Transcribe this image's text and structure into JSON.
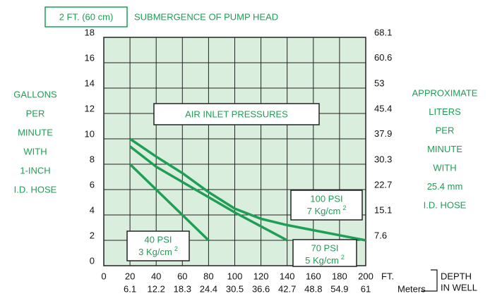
{
  "chart_data": {
    "type": "line",
    "title": "2 FT. (60 cm)",
    "subtitle": "SUBMERGENCE OF PUMP HEAD",
    "annotation": "AIR INLET PRESSURES",
    "y_label_lines": [
      "GALLONS",
      "PER",
      "MINUTE",
      "WITH",
      "1-INCH",
      "I.D. HOSE"
    ],
    "y2_label_lines": [
      "APPROXIMATE",
      "LITERS",
      "PER",
      "MINUTE",
      "WITH",
      "25.4 mm",
      "I.D. HOSE"
    ],
    "x_label": "FT.",
    "x2_label": "Meters",
    "depth_label_lines": [
      "DEPTH",
      "IN WELL"
    ],
    "xlim": [
      0,
      200
    ],
    "xticks": [
      0,
      20,
      40,
      60,
      80,
      100,
      120,
      140,
      160,
      180,
      200
    ],
    "x2lim": [
      0,
      61
    ],
    "x2ticks": [
      6.1,
      12.2,
      18.3,
      24.4,
      30.5,
      36.6,
      42.7,
      48.8,
      54.9,
      61
    ],
    "ylim": [
      0,
      18
    ],
    "yticks": [
      0,
      2,
      4,
      6,
      8,
      10,
      12,
      14,
      16,
      18
    ],
    "y2lim": [
      0,
      68.1
    ],
    "y2ticks": [
      7.6,
      15.1,
      22.7,
      30.3,
      37.9,
      45.4,
      53,
      60.6,
      68.1
    ],
    "grid": true,
    "series": [
      {
        "name": "40 PSI",
        "unit_label": "3 Kg/cm",
        "unit_sup": "2",
        "color": "#1f9e55",
        "x": [
          20,
          40,
          60,
          80
        ],
        "values": [
          8,
          6,
          4,
          2
        ]
      },
      {
        "name": "70 PSI",
        "unit_label": "5 Kg/cm",
        "unit_sup": "2",
        "color": "#1f9e55",
        "x": [
          20,
          40,
          60,
          80,
          100,
          120,
          140
        ],
        "values": [
          9.4,
          7.8,
          6.6,
          5.4,
          4.2,
          3.1,
          2
        ]
      },
      {
        "name": "100 PSI",
        "unit_label": "7 Kg/cm",
        "unit_sup": "2",
        "color": "#1f9e55",
        "x": [
          20,
          40,
          60,
          80,
          100,
          120,
          140,
          160,
          180,
          200
        ],
        "values": [
          10,
          8.6,
          7.3,
          5.8,
          4.5,
          3.7,
          3.2,
          2.8,
          2.4,
          2
        ]
      }
    ]
  }
}
